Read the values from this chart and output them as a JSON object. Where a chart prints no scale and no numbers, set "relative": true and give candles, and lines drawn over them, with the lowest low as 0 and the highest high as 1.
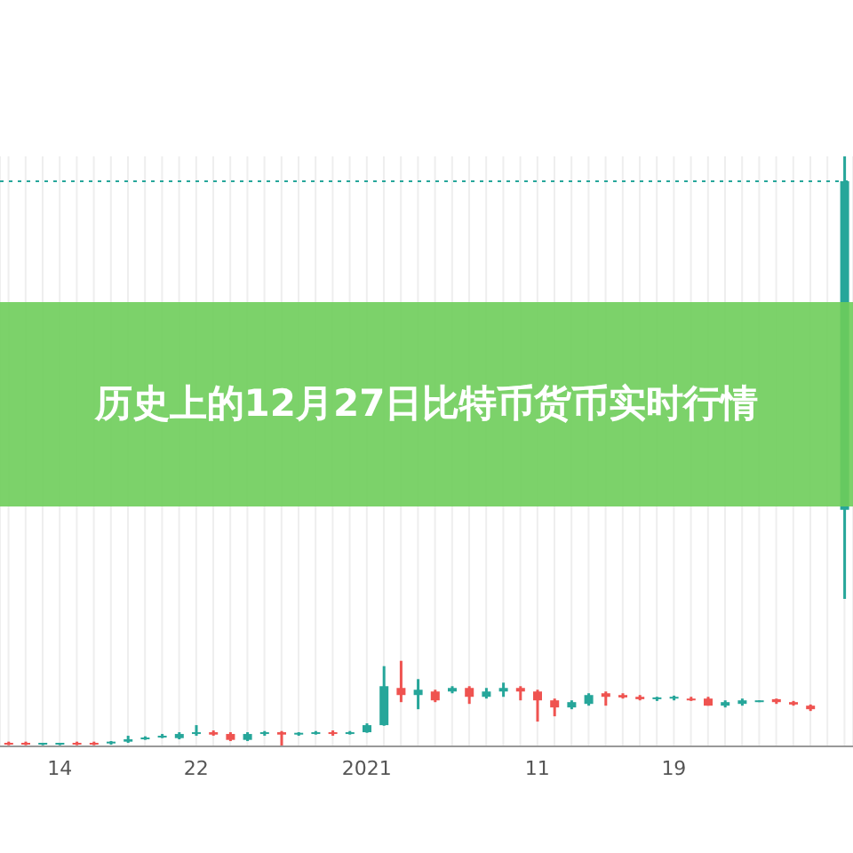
{
  "chart_data": {
    "type": "candlestick",
    "title": "历史上的12月27日比特币货币实时行情",
    "relative": true,
    "grid": "x",
    "categories": [
      null,
      null,
      null,
      "14",
      null,
      null,
      null,
      null,
      null,
      null,
      null,
      "22",
      null,
      null,
      null,
      null,
      null,
      null,
      null,
      null,
      null,
      "2021",
      null,
      null,
      null,
      null,
      null,
      null,
      null,
      null,
      null,
      "11",
      null,
      null,
      null,
      null,
      null,
      null,
      null,
      "19",
      null,
      null,
      null,
      null,
      null,
      null,
      null,
      null,
      null,
      null
    ],
    "ohlc": [
      [
        0.006,
        0.008,
        0.002,
        0.003
      ],
      [
        0.006,
        0.008,
        0.002,
        0.003
      ],
      [
        0.003,
        0.006,
        0.002,
        0.006
      ],
      [
        0.003,
        0.006,
        0.002,
        0.006
      ],
      [
        0.006,
        0.008,
        0.002,
        0.003
      ],
      [
        0.006,
        0.008,
        0.002,
        0.003
      ],
      [
        0.005,
        0.009,
        0.003,
        0.008
      ],
      [
        0.008,
        0.018,
        0.006,
        0.012
      ],
      [
        0.012,
        0.017,
        0.011,
        0.015
      ],
      [
        0.015,
        0.021,
        0.014,
        0.018
      ],
      [
        0.014,
        0.024,
        0.012,
        0.021
      ],
      [
        0.021,
        0.036,
        0.018,
        0.024
      ],
      [
        0.024,
        0.027,
        0.018,
        0.02
      ],
      [
        0.021,
        0.024,
        0.009,
        0.011
      ],
      [
        0.011,
        0.024,
        0.009,
        0.021
      ],
      [
        0.021,
        0.026,
        0.018,
        0.024
      ],
      [
        0.024,
        0.026,
        0,
        0.02
      ],
      [
        0.02,
        0.024,
        0.018,
        0.023
      ],
      [
        0.023,
        0.026,
        0.02,
        0.024
      ],
      [
        0.024,
        0.027,
        0.018,
        0.021
      ],
      [
        0.021,
        0.026,
        0.02,
        0.024
      ],
      [
        0.024,
        0.039,
        0.023,
        0.036
      ],
      [
        0.036,
        0.136,
        0.035,
        0.102
      ],
      [
        0.099,
        0.145,
        0.075,
        0.087
      ],
      [
        0.087,
        0.114,
        0.063,
        0.096
      ],
      [
        0.093,
        0.096,
        0.075,
        0.078
      ],
      [
        0.093,
        0.102,
        0.09,
        0.099
      ],
      [
        0.099,
        0.102,
        0.072,
        0.084
      ],
      [
        0.084,
        0.099,
        0.081,
        0.093
      ],
      [
        0.093,
        0.108,
        0.084,
        0.099
      ],
      [
        0.099,
        0.102,
        0.078,
        0.093
      ],
      [
        0.093,
        0.096,
        0.042,
        0.078
      ],
      [
        0.078,
        0.081,
        0.051,
        0.066
      ],
      [
        0.066,
        0.078,
        0.063,
        0.075
      ],
      [
        0.072,
        0.09,
        0.069,
        0.087
      ],
      [
        0.09,
        0.093,
        0.069,
        0.084
      ],
      [
        0.087,
        0.09,
        0.081,
        0.083
      ],
      [
        0.084,
        0.087,
        0.078,
        0.08
      ],
      [
        0.08,
        0.084,
        0.077,
        0.083
      ],
      [
        0.081,
        0.086,
        0.078,
        0.084
      ],
      [
        0.081,
        0.084,
        0.077,
        0.078
      ],
      [
        0.081,
        0.084,
        0.069,
        0.069
      ],
      [
        0.069,
        0.078,
        0.066,
        0.075
      ],
      [
        0.072,
        0.081,
        0.069,
        0.078
      ],
      [
        0.077,
        0.078,
        0.075,
        0.078
      ],
      [
        0.08,
        0.081,
        0.072,
        0.075
      ],
      [
        0.075,
        0.077,
        0.069,
        0.071
      ],
      [
        0.069,
        0.071,
        0.06,
        0.063
      ],
      null,
      [
        0.401,
        1,
        0.25,
        0.958
      ]
    ],
    "colors": [
      "#ef5350",
      "#ef5350",
      "#26a69a",
      "#26a69a",
      "#ef5350",
      "#ef5350",
      "#26a69a",
      "#26a69a",
      "#26a69a",
      "#26a69a",
      "#26a69a",
      "#26a69a",
      "#ef5350",
      "#ef5350",
      "#26a69a",
      "#26a69a",
      "#ef5350",
      "#26a69a",
      "#26a69a",
      "#ef5350",
      "#26a69a",
      "#26a69a",
      "#26a69a",
      "#ef5350",
      "#26a69a",
      "#ef5350",
      "#26a69a",
      "#ef5350",
      "#26a69a",
      "#26a69a",
      "#ef5350",
      "#ef5350",
      "#ef5350",
      "#26a69a",
      "#26a69a",
      "#ef5350",
      "#ef5350",
      "#ef5350",
      "#26a69a",
      "#26a69a",
      "#ef5350",
      "#ef5350",
      "#26a69a",
      "#26a69a",
      "#26a69a",
      "#ef5350",
      "#ef5350",
      "#ef5350",
      "#26a69a",
      "#26a69a"
    ],
    "ref_lines": [
      {
        "axis": "y",
        "value": 0.958,
        "color": "#26a69a",
        "line_style": "dotted"
      }
    ]
  }
}
